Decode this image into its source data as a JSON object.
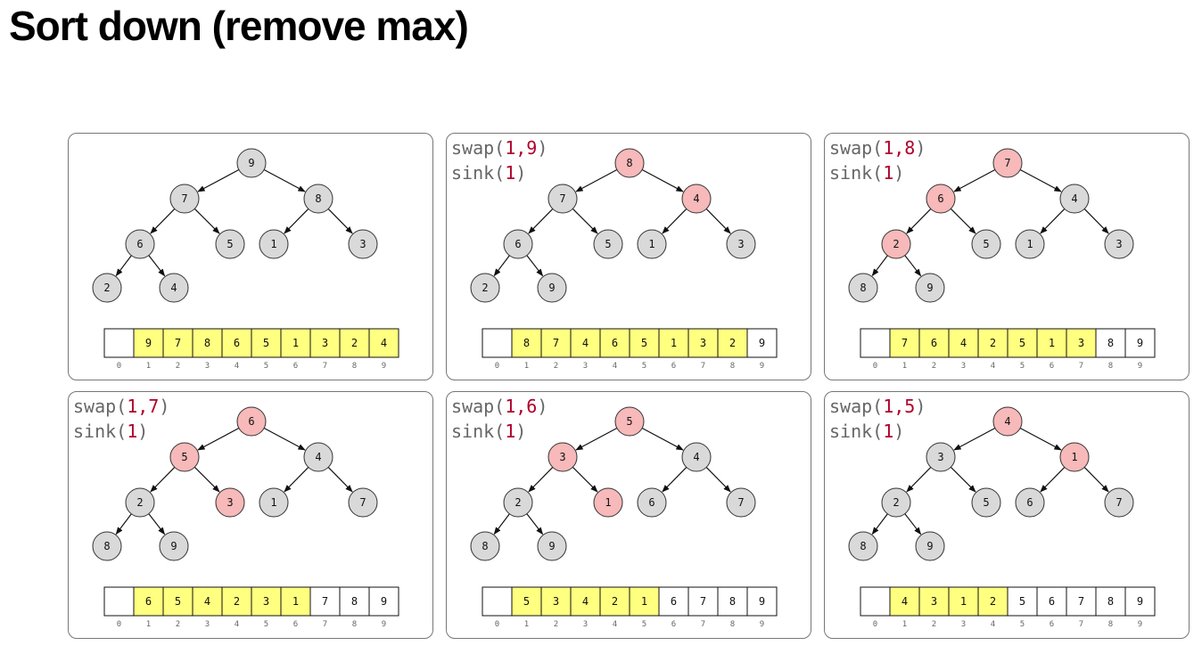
{
  "title": "Sort down (remove max)",
  "colors": {
    "node": "#d9d9d9",
    "highlight": "#f7b9b9",
    "heap_cell": "#ffff80",
    "sorted_cell": "#ffffff"
  },
  "panels": [
    {
      "code": null,
      "nodes": [
        "9",
        "7",
        "8",
        "6",
        "5",
        "1",
        "3",
        "2",
        "4"
      ],
      "highlight": [],
      "array": [
        "",
        "9",
        "7",
        "8",
        "6",
        "5",
        "1",
        "3",
        "2",
        "4"
      ],
      "heap_size": 9,
      "indices": [
        "0",
        "1",
        "2",
        "3",
        "4",
        "5",
        "6",
        "7",
        "8",
        "9"
      ]
    },
    {
      "code": [
        [
          "swap(",
          "1,9",
          ")"
        ],
        [
          "sink(",
          "1",
          ")"
        ]
      ],
      "nodes": [
        "8",
        "7",
        "4",
        "6",
        "5",
        "1",
        "3",
        "2",
        "9"
      ],
      "highlight": [
        1,
        3
      ],
      "array": [
        "",
        "8",
        "7",
        "4",
        "6",
        "5",
        "1",
        "3",
        "2",
        "9"
      ],
      "heap_size": 8,
      "indices": [
        "0",
        "1",
        "2",
        "3",
        "4",
        "5",
        "6",
        "7",
        "8",
        "9"
      ]
    },
    {
      "code": [
        [
          "swap(",
          "1,8",
          ")"
        ],
        [
          "sink(",
          "1",
          ")"
        ]
      ],
      "nodes": [
        "7",
        "6",
        "4",
        "2",
        "5",
        "1",
        "3",
        "8",
        "9"
      ],
      "highlight": [
        1,
        2,
        4
      ],
      "array": [
        "",
        "7",
        "6",
        "4",
        "2",
        "5",
        "1",
        "3",
        "8",
        "9"
      ],
      "heap_size": 7,
      "indices": [
        "0",
        "1",
        "2",
        "3",
        "4",
        "5",
        "6",
        "7",
        "8",
        "9"
      ]
    },
    {
      "code": [
        [
          "swap(",
          "1,7",
          ")"
        ],
        [
          "sink(",
          "1",
          ")"
        ]
      ],
      "nodes": [
        "6",
        "5",
        "4",
        "2",
        "3",
        "1",
        "7",
        "8",
        "9"
      ],
      "highlight": [
        1,
        2,
        5
      ],
      "array": [
        "",
        "6",
        "5",
        "4",
        "2",
        "3",
        "1",
        "7",
        "8",
        "9"
      ],
      "heap_size": 6,
      "indices": [
        "0",
        "1",
        "2",
        "3",
        "4",
        "5",
        "6",
        "7",
        "8",
        "9"
      ]
    },
    {
      "code": [
        [
          "swap(",
          "1,6",
          ")"
        ],
        [
          "sink(",
          "1",
          ")"
        ]
      ],
      "nodes": [
        "5",
        "3",
        "4",
        "2",
        "1",
        "6",
        "7",
        "8",
        "9"
      ],
      "highlight": [
        1,
        2,
        5
      ],
      "array": [
        "",
        "5",
        "3",
        "4",
        "2",
        "1",
        "6",
        "7",
        "8",
        "9"
      ],
      "heap_size": 5,
      "indices": [
        "0",
        "1",
        "2",
        "3",
        "4",
        "5",
        "6",
        "7",
        "8",
        "9"
      ]
    },
    {
      "code": [
        [
          "swap(",
          "1,5",
          ")"
        ],
        [
          "sink(",
          "1",
          ")"
        ]
      ],
      "nodes": [
        "4",
        "3",
        "1",
        "2",
        "5",
        "6",
        "7",
        "8",
        "9"
      ],
      "highlight": [
        1,
        3
      ],
      "array": [
        "",
        "4",
        "3",
        "1",
        "2",
        "5",
        "6",
        "7",
        "8",
        "9"
      ],
      "heap_size": 4,
      "indices": [
        "0",
        "1",
        "2",
        "3",
        "4",
        "5",
        "6",
        "7",
        "8",
        "9"
      ]
    }
  ]
}
